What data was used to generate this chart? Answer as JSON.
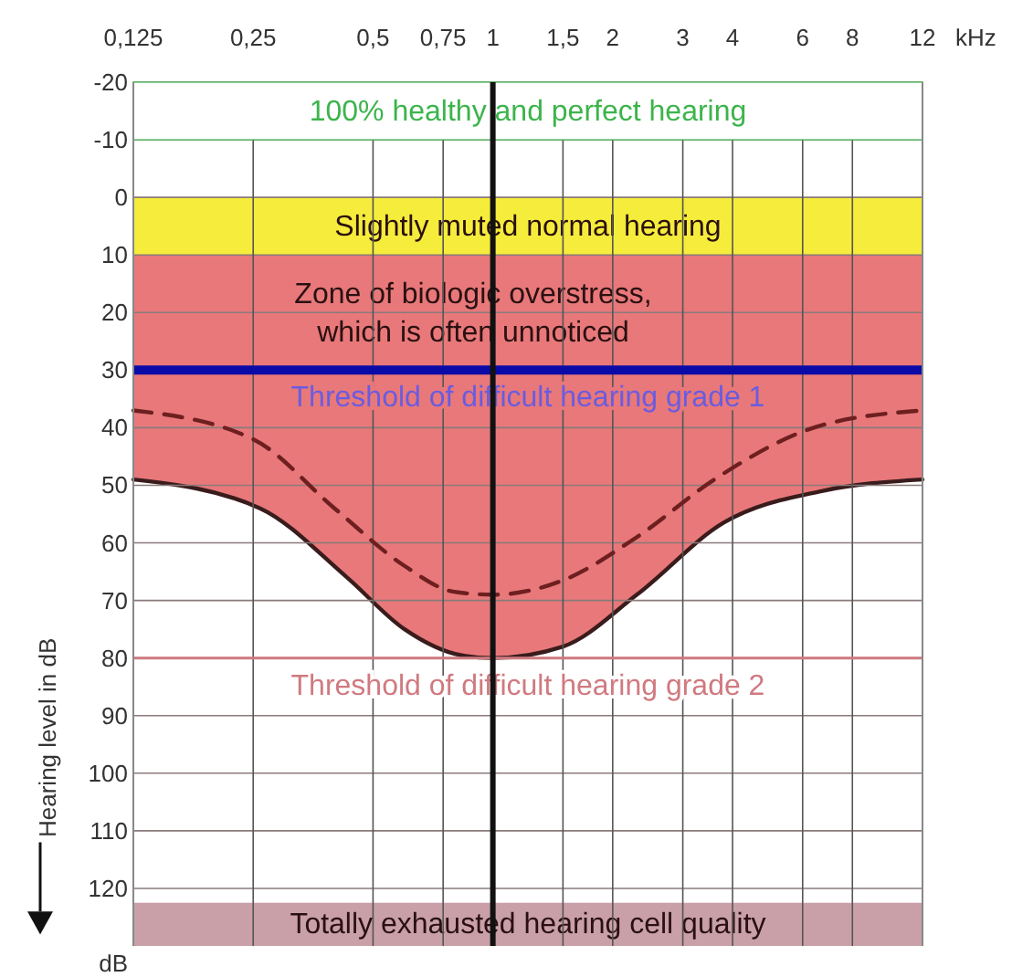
{
  "chart_data": {
    "type": "line",
    "xlabel": "kHz",
    "ylabel": "Hearing level in dB",
    "log": "x",
    "grid": true,
    "xlim": [
      0.125,
      12
    ],
    "xticks": [
      {
        "value": 0.125,
        "label": "0,125"
      },
      {
        "value": 0.25,
        "label": "0,25"
      },
      {
        "value": 0.5,
        "label": "0,5"
      },
      {
        "value": 0.75,
        "label": "0,75"
      },
      1,
      {
        "value": 1.5,
        "label": "1,5"
      },
      2,
      3,
      4,
      6,
      8,
      12
    ],
    "ylim": [
      130,
      -20
    ],
    "yticks": [
      -20,
      -10,
      0,
      10,
      20,
      30,
      40,
      50,
      60,
      70,
      80,
      90,
      100,
      110,
      120
    ],
    "series": [
      {
        "color": "#3a1c1c",
        "line_style": "solid",
        "x": [
          0.125,
          0.26,
          0.43,
          0.6,
          0.83,
          1,
          1.5,
          2.3,
          3.8,
          6.7,
          12
        ],
        "values": [
          49,
          54,
          66,
          75,
          79.5,
          80,
          78,
          69,
          56.5,
          51,
          49
        ],
        "lower": [
          30,
          30,
          30,
          30,
          30,
          30,
          30,
          30,
          30,
          30,
          30
        ],
        "upper": [
          49,
          54,
          66,
          75,
          79.5,
          80,
          78,
          69,
          56.5,
          51,
          49
        ]
      },
      {
        "color": "#6e1f1f",
        "line_style": "dashed",
        "x": [
          0.125,
          0.25,
          0.4,
          0.6,
          0.8,
          1,
          1.5,
          2.3,
          3.6,
          6.4,
          12
        ],
        "values": [
          37,
          42,
          54,
          64,
          68.5,
          69,
          66.5,
          59,
          49,
          40,
          37
        ]
      }
    ],
    "bands": [
      {
        "axis": "y",
        "from": -20,
        "to": -10,
        "label": "100% healthy and perfect hearing",
        "color": "#3cb44b"
      },
      {
        "axis": "y",
        "from": 0,
        "to": 10,
        "label": "Slightly muted normal hearing",
        "color": "#f5ec3c"
      },
      {
        "axis": "y",
        "from": 10,
        "to": 30,
        "label": "Zone of biologic overstress,\nwhich is often unnoticed",
        "color": "#e8787a"
      },
      {
        "axis": "y",
        "from": 122.5,
        "to": 130,
        "label": "Totally exhausted hearing cell quality",
        "color": "#c9a0a8"
      }
    ],
    "ref_lines": [
      {
        "axis": "y",
        "value": 30,
        "label": "Threshold of difficult hearing grade 1",
        "color": "#0a0aa8"
      },
      {
        "axis": "y",
        "value": 80,
        "label": "Threshold of difficult hearing grade 2",
        "color": "#d07a80"
      },
      {
        "axis": "x",
        "value": 1,
        "color": "#111111"
      }
    ],
    "annotations": [
      "dB"
    ]
  }
}
